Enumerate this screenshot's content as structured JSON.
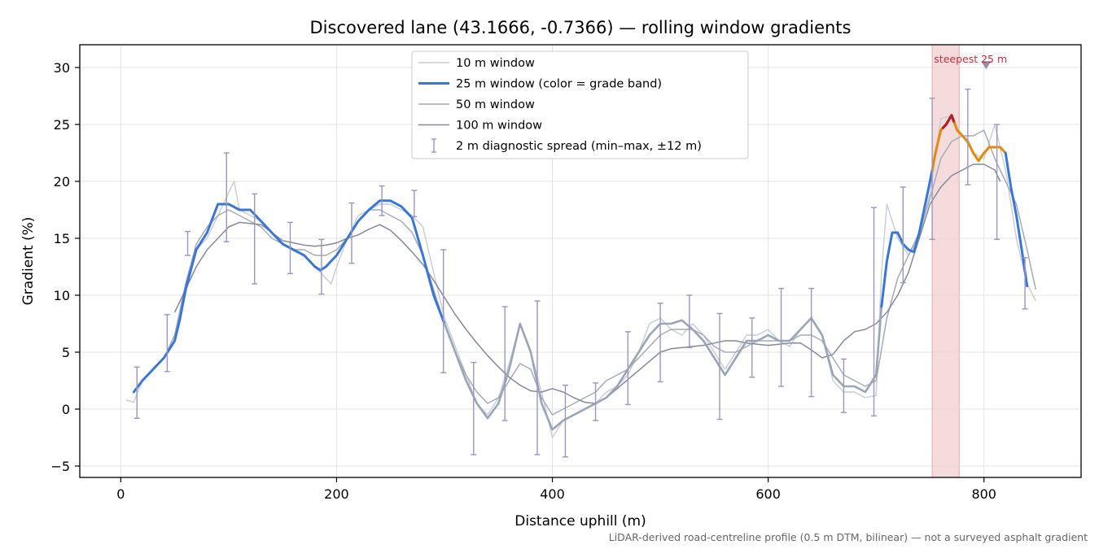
{
  "chart_data": {
    "type": "line",
    "title": "Discovered lane (43.1666, -0.7366) — rolling window gradients",
    "xlabel": "Distance uphill (m)",
    "ylabel": "Gradient (%)",
    "xlim": [
      -38,
      890
    ],
    "ylim": [
      -6,
      32
    ],
    "xticks": [
      0,
      200,
      400,
      600,
      800
    ],
    "yticks": [
      -5,
      0,
      5,
      10,
      15,
      20,
      25,
      30
    ],
    "grid": true,
    "legend_position": "top-center",
    "footnote": "LiDAR-derived road-centreline profile (0.5 m DTM, bilinear) — not a surveyed asphalt gradient",
    "colors": {
      "w10": "#c7ccd5",
      "w25": "#3a77d4",
      "w25_mid": "#e08a0b",
      "w25_peak": "#b02028",
      "w25_muted": "#9aa6b5",
      "w50": "#a4abb7",
      "w100": "#838a99",
      "spread": "#9d95be",
      "steep_band": "#f3cfd2",
      "steep_marker": "#9c8aa8"
    },
    "steepest_band": {
      "x0": 752,
      "x1": 777,
      "label": "steepest 25 m",
      "marker_x": 802,
      "marker_y": 30.2
    },
    "series": [
      {
        "name": "10 m window",
        "key": "w10",
        "x": [
          5,
          12,
          20,
          30,
          40,
          50,
          60,
          70,
          80,
          90,
          100,
          105,
          110,
          120,
          130,
          140,
          150,
          160,
          170,
          180,
          190,
          195,
          200,
          210,
          220,
          230,
          240,
          250,
          260,
          270,
          280,
          290,
          300,
          310,
          320,
          330,
          340,
          350,
          360,
          370,
          380,
          390,
          400,
          410,
          420,
          430,
          440,
          450,
          460,
          470,
          480,
          490,
          500,
          510,
          520,
          530,
          540,
          550,
          560,
          570,
          580,
          590,
          600,
          610,
          620,
          630,
          640,
          650,
          660,
          670,
          680,
          690,
          700,
          705,
          710,
          720,
          730,
          740,
          750,
          760,
          770,
          780,
          790,
          800,
          810,
          820,
          830,
          840,
          848
        ],
        "y": [
          0.8,
          0.6,
          2.5,
          3.5,
          4.5,
          6.0,
          10.0,
          14.0,
          15.0,
          17.0,
          19.0,
          20.0,
          17.5,
          17.0,
          16.5,
          15.5,
          14.5,
          14.0,
          13.5,
          12.5,
          11.5,
          11.0,
          12.5,
          15.0,
          17.0,
          17.5,
          18.0,
          18.0,
          17.5,
          17.0,
          16.0,
          12.0,
          8.0,
          5.5,
          3.0,
          0.5,
          -0.5,
          1.0,
          4.0,
          7.5,
          5.0,
          1.5,
          -2.5,
          -1.0,
          -0.5,
          0.0,
          0.5,
          1.5,
          2.0,
          3.0,
          5.0,
          7.5,
          8.0,
          7.0,
          6.5,
          7.5,
          6.5,
          5.0,
          3.5,
          5.0,
          6.5,
          6.5,
          7.0,
          6.0,
          5.5,
          7.0,
          8.0,
          6.5,
          2.5,
          1.5,
          1.5,
          1.0,
          1.2,
          12.0,
          18.0,
          15.0,
          13.5,
          15.0,
          19.0,
          25.5,
          25.8,
          24.0,
          22.5,
          22.0,
          25.0,
          21.0,
          15.0,
          11.0,
          9.5
        ]
      },
      {
        "name": "25 m window (color = grade band)",
        "key": "w25",
        "x": [
          12,
          20,
          30,
          40,
          50,
          55,
          60,
          70,
          80,
          90,
          100,
          110,
          120,
          130,
          140,
          150,
          160,
          170,
          180,
          185,
          190,
          195,
          200,
          210,
          220,
          230,
          240,
          250,
          260,
          270,
          280,
          290,
          300,
          310,
          320,
          330,
          340,
          350,
          360,
          370,
          380,
          390,
          400,
          410,
          420,
          430,
          440,
          450,
          460,
          470,
          480,
          490,
          500,
          510,
          520,
          530,
          540,
          550,
          560,
          570,
          580,
          590,
          600,
          610,
          620,
          630,
          640,
          650,
          660,
          670,
          680,
          690,
          700,
          705,
          710,
          715,
          720,
          725,
          730,
          735,
          740,
          750,
          755,
          760,
          765,
          770,
          775,
          780,
          785,
          790,
          795,
          800,
          805,
          810,
          815,
          820,
          825,
          830,
          835,
          840
        ],
        "y": [
          1.5,
          2.5,
          3.5,
          4.5,
          6.0,
          8.0,
          10.5,
          14.0,
          15.5,
          18.0,
          18.0,
          17.5,
          17.5,
          16.5,
          15.5,
          14.5,
          14.0,
          13.5,
          12.5,
          12.2,
          12.5,
          13.0,
          13.5,
          15.0,
          16.5,
          17.5,
          18.3,
          18.3,
          17.8,
          16.8,
          13.5,
          10.0,
          7.5,
          5.0,
          2.5,
          0.5,
          -0.8,
          0.5,
          3.5,
          7.5,
          5.0,
          0.5,
          -1.8,
          -1.0,
          -0.5,
          0.0,
          0.5,
          1.0,
          2.0,
          3.5,
          5.0,
          6.5,
          7.5,
          7.5,
          7.8,
          7.0,
          6.0,
          4.5,
          3.0,
          4.5,
          6.0,
          6.0,
          6.5,
          6.0,
          6.0,
          7.0,
          8.0,
          6.5,
          3.0,
          2.0,
          2.0,
          1.5,
          3.0,
          9.0,
          13.0,
          15.5,
          15.5,
          14.5,
          14.0,
          13.8,
          15.5,
          20.0,
          22.5,
          24.5,
          25.0,
          25.8,
          24.5,
          24.0,
          23.5,
          22.5,
          21.8,
          22.5,
          23.0,
          23.0,
          23.0,
          22.5,
          19.5,
          17.0,
          14.0,
          10.8
        ],
        "bands": [
          {
            "range": [
              0,
              300
            ],
            "color": "w25"
          },
          {
            "range": [
              300,
              705
            ],
            "color": "w25_muted"
          },
          {
            "range": [
              705,
              752
            ],
            "color": "w25"
          },
          {
            "range": [
              752,
              820
            ],
            "color": "w25_mid"
          },
          {
            "range": [
              820,
              845
            ],
            "color": "w25"
          }
        ],
        "peak_range": [
          762,
          772
        ]
      },
      {
        "name": "50 m window",
        "key": "w50",
        "x": [
          25,
          30,
          40,
          50,
          60,
          70,
          80,
          90,
          100,
          110,
          120,
          130,
          140,
          150,
          160,
          170,
          180,
          190,
          200,
          210,
          220,
          230,
          240,
          250,
          260,
          270,
          280,
          290,
          300,
          310,
          320,
          330,
          340,
          350,
          360,
          370,
          380,
          390,
          400,
          410,
          420,
          430,
          440,
          450,
          460,
          470,
          480,
          490,
          500,
          510,
          520,
          530,
          540,
          550,
          560,
          570,
          580,
          590,
          600,
          610,
          620,
          630,
          640,
          650,
          660,
          670,
          680,
          690,
          700,
          710,
          720,
          730,
          740,
          750,
          760,
          770,
          780,
          790,
          800,
          810,
          820,
          830,
          840,
          848
        ],
        "y": [
          3.0,
          3.5,
          4.5,
          6.5,
          11.0,
          14.5,
          16.0,
          17.0,
          17.5,
          17.0,
          16.5,
          16.0,
          15.0,
          14.5,
          14.0,
          14.0,
          13.5,
          13.5,
          14.0,
          15.0,
          16.5,
          17.5,
          17.5,
          17.0,
          16.5,
          15.5,
          13.5,
          10.5,
          7.5,
          5.0,
          3.0,
          1.5,
          0.5,
          1.0,
          2.5,
          4.0,
          3.5,
          1.0,
          -0.5,
          0.0,
          0.5,
          1.0,
          1.5,
          2.5,
          3.0,
          3.5,
          4.5,
          5.5,
          6.5,
          7.0,
          7.0,
          7.0,
          6.5,
          5.5,
          5.0,
          5.0,
          5.5,
          6.0,
          6.0,
          6.0,
          6.0,
          6.5,
          6.5,
          6.0,
          4.5,
          3.0,
          2.5,
          2.0,
          2.5,
          8.0,
          11.5,
          13.5,
          15.5,
          18.5,
          22.0,
          23.5,
          24.0,
          24.0,
          24.5,
          22.0,
          20.0,
          18.0,
          14.0,
          10.5
        ]
      },
      {
        "name": "100 m window",
        "key": "w100",
        "x": [
          50,
          60,
          70,
          80,
          90,
          100,
          110,
          120,
          130,
          140,
          150,
          160,
          170,
          180,
          190,
          200,
          210,
          220,
          230,
          240,
          250,
          260,
          270,
          280,
          290,
          300,
          310,
          320,
          330,
          340,
          350,
          360,
          370,
          380,
          390,
          400,
          410,
          420,
          430,
          440,
          450,
          460,
          470,
          480,
          490,
          500,
          510,
          520,
          530,
          540,
          550,
          560,
          570,
          580,
          590,
          600,
          610,
          620,
          630,
          640,
          650,
          660,
          670,
          680,
          690,
          700,
          710,
          720,
          730,
          740,
          750,
          760,
          770,
          780,
          790,
          800,
          810,
          815
        ],
        "y": [
          8.5,
          10.5,
          12.5,
          14.0,
          15.0,
          16.0,
          16.4,
          16.3,
          16.2,
          15.5,
          14.8,
          14.6,
          14.4,
          14.3,
          14.4,
          14.6,
          15.0,
          15.3,
          15.8,
          16.2,
          15.7,
          14.8,
          13.8,
          12.7,
          11.3,
          9.8,
          8.3,
          7.0,
          5.8,
          4.7,
          3.7,
          2.8,
          2.1,
          1.6,
          1.5,
          1.8,
          1.5,
          1.0,
          0.6,
          0.5,
          1.0,
          1.8,
          2.6,
          3.4,
          4.2,
          5.0,
          5.3,
          5.4,
          5.5,
          5.6,
          5.8,
          6.0,
          6.0,
          5.8,
          5.7,
          5.6,
          5.7,
          5.8,
          5.8,
          5.2,
          4.5,
          4.8,
          6.0,
          6.8,
          7.0,
          7.5,
          8.5,
          10.0,
          12.0,
          15.0,
          18.0,
          19.5,
          20.5,
          21.0,
          21.5,
          21.5,
          21.0,
          20.0
        ]
      }
    ],
    "spread": {
      "name": "2 m diagnostic spread (min–max, ±12 m)",
      "x": [
        15,
        43,
        62,
        98,
        124,
        157,
        186,
        214,
        242,
        272,
        299,
        327,
        356,
        386,
        412,
        440,
        470,
        500,
        527,
        555,
        585,
        612,
        640,
        670,
        698,
        725,
        752,
        785,
        812,
        838
      ],
      "ymin": [
        -0.8,
        3.3,
        13.5,
        14.7,
        11.0,
        11.9,
        10.1,
        12.8,
        17.0,
        16.9,
        3.2,
        -4.0,
        -1.0,
        -4.0,
        -4.2,
        -1.0,
        0.4,
        2.4,
        5.4,
        -0.9,
        2.8,
        2.0,
        1.1,
        -0.3,
        -0.6,
        11.1,
        14.9,
        19.7,
        14.9,
        8.8
      ],
      "ymax": [
        3.7,
        8.3,
        15.6,
        22.5,
        18.9,
        16.4,
        14.9,
        18.1,
        19.6,
        19.2,
        14.0,
        4.1,
        9.0,
        9.5,
        2.1,
        2.3,
        6.8,
        9.3,
        10.0,
        8.4,
        8.0,
        10.6,
        10.6,
        4.4,
        17.7,
        19.5,
        27.3,
        28.1,
        25.0,
        13.3
      ]
    }
  }
}
